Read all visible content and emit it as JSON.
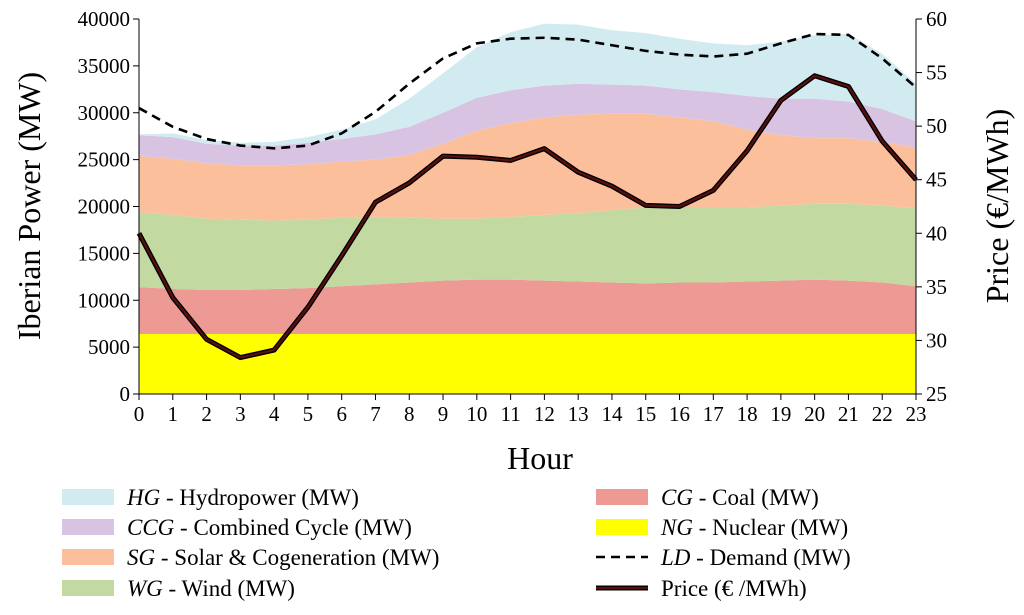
{
  "chart_data": {
    "type": "area",
    "xlabel": "Hour",
    "ylabel_left": "Iberian Power (MW)",
    "ylabel_right": "Price (€/MWh)",
    "x": [
      0,
      1,
      2,
      3,
      4,
      5,
      6,
      7,
      8,
      9,
      10,
      11,
      12,
      13,
      14,
      15,
      16,
      17,
      18,
      19,
      20,
      21,
      22,
      23
    ],
    "x_ticks": [
      "0",
      "1",
      "2",
      "3",
      "4",
      "5",
      "6",
      "7",
      "8",
      "9",
      "10",
      "11",
      "12",
      "13",
      "14",
      "15",
      "16",
      "17",
      "18",
      "19",
      "20",
      "21",
      "22",
      "23"
    ],
    "ylim_left": [
      0,
      40000
    ],
    "y_ticks_left": [
      "0",
      "5000",
      "10000",
      "15000",
      "20000",
      "25000",
      "30000",
      "35000",
      "40000"
    ],
    "ylim_right": [
      25,
      60
    ],
    "y_ticks_right": [
      "25",
      "30",
      "35",
      "40",
      "45",
      "50",
      "55",
      "60"
    ],
    "stacked_series": [
      {
        "key": "NG",
        "color": "#ffff00",
        "values": [
          6400,
          6400,
          6400,
          6400,
          6400,
          6400,
          6400,
          6400,
          6400,
          6400,
          6400,
          6400,
          6400,
          6400,
          6400,
          6400,
          6400,
          6400,
          6400,
          6400,
          6400,
          6400,
          6400,
          6400
        ]
      },
      {
        "key": "CG",
        "color": "#ec9a93",
        "values": [
          5000,
          4800,
          4700,
          4700,
          4800,
          4900,
          5100,
          5300,
          5500,
          5700,
          5800,
          5800,
          5700,
          5600,
          5500,
          5400,
          5500,
          5500,
          5600,
          5700,
          5800,
          5700,
          5500,
          5100
        ]
      },
      {
        "key": "WG",
        "color": "#c2d9a2",
        "values": [
          8000,
          7900,
          7600,
          7500,
          7300,
          7300,
          7300,
          7200,
          6900,
          6600,
          6500,
          6700,
          7000,
          7300,
          7700,
          8100,
          8000,
          8000,
          7900,
          8000,
          8100,
          8200,
          8200,
          8300
        ]
      },
      {
        "key": "SG",
        "color": "#fbc09b",
        "values": [
          6000,
          6000,
          5900,
          5800,
          5900,
          5900,
          6000,
          6100,
          6700,
          8000,
          9400,
          10000,
          10400,
          10500,
          10300,
          10000,
          9600,
          9200,
          8300,
          7500,
          7000,
          7000,
          6800,
          6500
        ]
      },
      {
        "key": "CCG",
        "color": "#d8c4e2",
        "values": [
          2200,
          2300,
          2100,
          2100,
          2100,
          2300,
          2400,
          2700,
          3000,
          3300,
          3500,
          3500,
          3400,
          3300,
          3100,
          3000,
          3000,
          3100,
          3600,
          3900,
          4200,
          3900,
          3500,
          2800
        ]
      },
      {
        "key": "HG",
        "color": "#d2ebf1",
        "values": [
          100,
          400,
          400,
          300,
          400,
          600,
          1000,
          1600,
          3000,
          4200,
          5400,
          6200,
          6600,
          6300,
          5800,
          5600,
          5400,
          5200,
          5400,
          6100,
          6800,
          7200,
          5900,
          4000
        ]
      }
    ],
    "demand_series": {
      "key": "LD",
      "values": [
        30500,
        28500,
        27200,
        26500,
        26200,
        26500,
        27800,
        30100,
        33100,
        35800,
        37400,
        37900,
        38000,
        37800,
        37200,
        36600,
        36200,
        36000,
        36300,
        37400,
        38400,
        38300,
        35800,
        32700
      ]
    },
    "price_series": {
      "key": "Price",
      "values": [
        40.0,
        34.0,
        30.1,
        28.4,
        29.1,
        33.1,
        37.9,
        42.9,
        44.7,
        47.2,
        47.1,
        46.8,
        47.9,
        45.7,
        44.4,
        42.6,
        42.5,
        44.0,
        47.7,
        52.4,
        54.7,
        53.7,
        48.6,
        45.0
      ]
    },
    "legend": [
      {
        "key": "HG",
        "abbr": "HG",
        "text": " - Hydropower (MW)",
        "style": "swatch",
        "color": "#d2ebf1"
      },
      {
        "key": "CCG",
        "abbr": "CCG",
        "text": " - Combined Cycle (MW)",
        "style": "swatch",
        "color": "#d8c4e2"
      },
      {
        "key": "SG",
        "abbr": "SG",
        "text": " - Solar & Cogeneration (MW)",
        "style": "swatch",
        "color": "#fbc09b"
      },
      {
        "key": "WG",
        "abbr": "WG",
        "text": " - Wind (MW)",
        "style": "swatch",
        "color": "#c2d9a2"
      },
      {
        "key": "CG",
        "abbr": "CG",
        "text": " - Coal (MW)",
        "style": "swatch",
        "color": "#ec9a93"
      },
      {
        "key": "NG",
        "abbr": "NG",
        "text": " - Nuclear (MW)",
        "style": "swatch",
        "color": "#ffff00"
      },
      {
        "key": "LD",
        "abbr": "LD",
        "text": " - Demand (MW)",
        "style": "dashed",
        "color": "#000000"
      },
      {
        "key": "Price",
        "abbr": "",
        "text": "Price (€ /MWh)",
        "style": "line",
        "color": "#4a0d0d"
      }
    ],
    "legend_placement": "bottom",
    "grid": false
  }
}
